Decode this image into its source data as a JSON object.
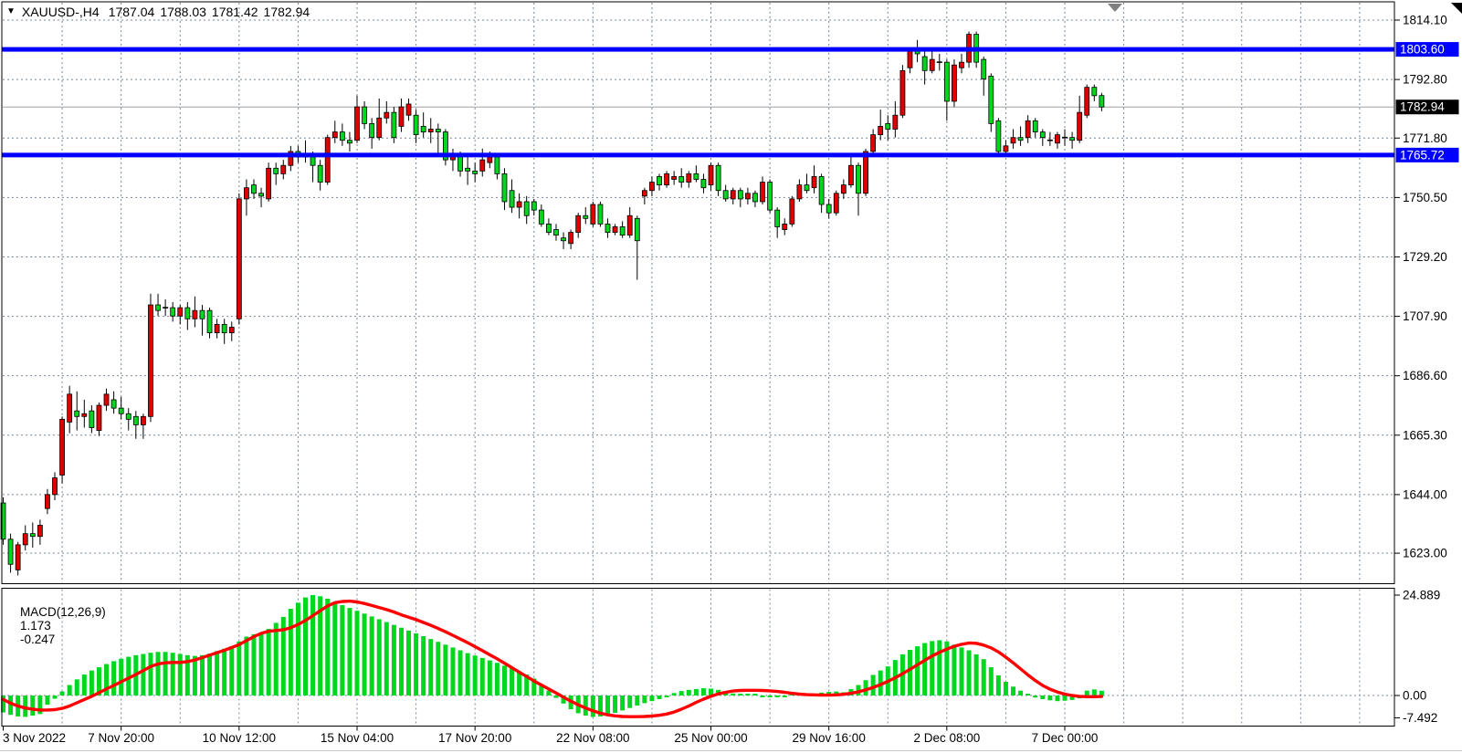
{
  "title": {
    "dropdown_icon": "▼",
    "symbol_timeframe": "XAUUSD-,H4",
    "open": "1787.04",
    "high": "1788.03",
    "low": "1781.42",
    "close": "1782.94"
  },
  "macd_panel": {
    "label": "MACD(12,26,9)",
    "main_value": "1.173",
    "signal_value": "-0.247"
  },
  "price_axis": {
    "labels": [
      {
        "text": "1814.10",
        "price": 1814.1,
        "style": "plain"
      },
      {
        "text": "1803.60",
        "price": 1803.6,
        "style": "blue-badge"
      },
      {
        "text": "1792.80",
        "price": 1792.8,
        "style": "plain"
      },
      {
        "text": "1782.94",
        "price": 1782.94,
        "style": "black-badge"
      },
      {
        "text": "1771.80",
        "price": 1771.8,
        "style": "plain"
      },
      {
        "text": "1765.72",
        "price": 1765.72,
        "style": "blue-badge"
      },
      {
        "text": "1750.50",
        "price": 1750.5,
        "style": "plain"
      },
      {
        "text": "1729.20",
        "price": 1729.2,
        "style": "plain"
      },
      {
        "text": "1707.90",
        "price": 1707.9,
        "style": "plain"
      },
      {
        "text": "1686.60",
        "price": 1686.6,
        "style": "plain"
      },
      {
        "text": "1665.30",
        "price": 1665.3,
        "style": "plain"
      },
      {
        "text": "1644.00",
        "price": 1644.0,
        "style": "plain"
      },
      {
        "text": "1623.00",
        "price": 1623.0,
        "style": "plain"
      }
    ]
  },
  "time_axis": {
    "labels": [
      {
        "text": "3 Nov 2022",
        "grid": 0,
        "align": "left"
      },
      {
        "text": "7 Nov 20:00",
        "grid": 2
      },
      {
        "text": "10 Nov 12:00",
        "grid": 4
      },
      {
        "text": "15 Nov 04:00",
        "grid": 6
      },
      {
        "text": "17 Nov 20:00",
        "grid": 8
      },
      {
        "text": "22 Nov 08:00",
        "grid": 10
      },
      {
        "text": "25 Nov 00:00",
        "grid": 12
      },
      {
        "text": "29 Nov 16:00",
        "grid": 14
      },
      {
        "text": "2 Dec 08:00",
        "grid": 16
      },
      {
        "text": "7 Dec 00:00",
        "grid": 18
      }
    ]
  },
  "macd_axis": {
    "labels": [
      {
        "text": "24.889",
        "value": 24.889
      },
      {
        "text": "0.00",
        "value": 0.0
      },
      {
        "text": "-7.492",
        "value": -7.492
      }
    ]
  },
  "colors": {
    "bull_candle": "#e00000",
    "bear_candle": "#00d71e",
    "wick": "#000000",
    "grid": "#778899",
    "hline": "#0000ff",
    "current_price_line": "#a0a0a0",
    "macd_histogram": "#00d71e",
    "macd_signal": "#ff0000",
    "badge_blue": "#0000ff",
    "badge_black": "#000000",
    "text": "#000000",
    "background": "#ffffff",
    "shift_marker": "#808080"
  },
  "chart_data": {
    "type": "candlestick",
    "symbol": "XAUUSD-",
    "timeframe": "H4",
    "current_ohlc": {
      "open": 1787.04,
      "high": 1788.03,
      "low": 1781.42,
      "close": 1782.94
    },
    "current_price": 1782.94,
    "horizontal_lines": [
      1803.6,
      1765.72
    ],
    "price_gridlines": [
      1814.1,
      1792.8,
      1771.8,
      1750.5,
      1729.2,
      1707.9,
      1686.6,
      1665.3,
      1644.0,
      1623.0
    ],
    "ylim": [
      1611,
      1821
    ],
    "candles_ohlc": [
      [
        1641,
        1643,
        1626,
        1628
      ],
      [
        1628,
        1630,
        1616,
        1619
      ],
      [
        1617,
        1627,
        1615,
        1626
      ],
      [
        1626,
        1633,
        1624,
        1630
      ],
      [
        1630,
        1634,
        1625,
        1629
      ],
      [
        1629,
        1635,
        1626,
        1633
      ],
      [
        1639,
        1646,
        1637,
        1644
      ],
      [
        1644,
        1652,
        1642,
        1650
      ],
      [
        1651,
        1672,
        1648,
        1671
      ],
      [
        1670,
        1683,
        1666,
        1680
      ],
      [
        1674,
        1681,
        1667,
        1672
      ],
      [
        1672,
        1678,
        1668,
        1673
      ],
      [
        1674,
        1676,
        1666,
        1668
      ],
      [
        1667,
        1677,
        1665,
        1676
      ],
      [
        1676,
        1682,
        1674,
        1680
      ],
      [
        1678,
        1681,
        1673,
        1675
      ],
      [
        1675,
        1679,
        1671,
        1673
      ],
      [
        1673,
        1675,
        1667,
        1671
      ],
      [
        1672,
        1674,
        1664,
        1669
      ],
      [
        1669,
        1673,
        1664,
        1672
      ],
      [
        1672,
        1716,
        1670,
        1712
      ],
      [
        1712,
        1716,
        1708,
        1710
      ],
      [
        1711,
        1714,
        1708,
        1711
      ],
      [
        1711,
        1713,
        1706,
        1708
      ],
      [
        1708,
        1712,
        1705,
        1711
      ],
      [
        1711,
        1713,
        1703,
        1707
      ],
      [
        1707,
        1715,
        1704,
        1710
      ],
      [
        1710,
        1712,
        1701,
        1707
      ],
      [
        1710,
        1711,
        1700,
        1702
      ],
      [
        1702,
        1707,
        1700,
        1705
      ],
      [
        1705,
        1707,
        1698,
        1702
      ],
      [
        1702,
        1706,
        1699,
        1704
      ],
      [
        1707,
        1752,
        1705,
        1750
      ],
      [
        1750,
        1757,
        1744,
        1754
      ],
      [
        1755,
        1757,
        1750,
        1752
      ],
      [
        1752,
        1754,
        1747,
        1751
      ],
      [
        1750,
        1763,
        1749,
        1761
      ],
      [
        1761,
        1763,
        1755,
        1759
      ],
      [
        1759,
        1764,
        1757,
        1762
      ],
      [
        1762,
        1769,
        1760,
        1767
      ],
      [
        1767,
        1769,
        1763,
        1765
      ],
      [
        1766,
        1771,
        1763,
        1765
      ],
      [
        1765,
        1767,
        1756,
        1762
      ],
      [
        1762,
        1764,
        1753,
        1756
      ],
      [
        1756,
        1773,
        1755,
        1772
      ],
      [
        1772,
        1778,
        1770,
        1774
      ],
      [
        1774,
        1777,
        1769,
        1771
      ],
      [
        1771,
        1774,
        1767,
        1770
      ],
      [
        1771,
        1787,
        1770,
        1783
      ],
      [
        1783,
        1785,
        1775,
        1777
      ],
      [
        1777,
        1779,
        1768,
        1772
      ],
      [
        1772,
        1786,
        1771,
        1779
      ],
      [
        1779,
        1785,
        1777,
        1781
      ],
      [
        1781,
        1783,
        1770,
        1772
      ],
      [
        1776,
        1786,
        1774,
        1783
      ],
      [
        1780,
        1786,
        1778,
        1784
      ],
      [
        1780,
        1782,
        1770,
        1773
      ],
      [
        1776,
        1781,
        1772,
        1774
      ],
      [
        1774,
        1779,
        1770,
        1775
      ],
      [
        1775,
        1777,
        1766,
        1774
      ],
      [
        1774,
        1775,
        1762,
        1764
      ],
      [
        1764,
        1768,
        1760,
        1766
      ],
      [
        1766,
        1767,
        1758,
        1760
      ],
      [
        1761,
        1766,
        1755,
        1760
      ],
      [
        1760,
        1763,
        1756,
        1759
      ],
      [
        1760,
        1768,
        1758,
        1764
      ],
      [
        1763,
        1767,
        1761,
        1765
      ],
      [
        1765,
        1766,
        1757,
        1759
      ],
      [
        1759,
        1761,
        1746,
        1749
      ],
      [
        1753,
        1757,
        1745,
        1747
      ],
      [
        1747,
        1752,
        1743,
        1749
      ],
      [
        1749,
        1751,
        1741,
        1744
      ],
      [
        1749,
        1750,
        1744,
        1746
      ],
      [
        1746,
        1748,
        1740,
        1741
      ],
      [
        1741,
        1743,
        1737,
        1738
      ],
      [
        1739,
        1741,
        1735,
        1737
      ],
      [
        1736,
        1738,
        1732,
        1735
      ],
      [
        1734,
        1739,
        1732,
        1738
      ],
      [
        1738,
        1745,
        1736,
        1744
      ],
      [
        1744,
        1747,
        1741,
        1743
      ],
      [
        1741,
        1749,
        1740,
        1748
      ],
      [
        1748,
        1749,
        1740,
        1741
      ],
      [
        1741,
        1743,
        1736,
        1738
      ],
      [
        1738,
        1741,
        1737,
        1740
      ],
      [
        1740,
        1742,
        1736,
        1737
      ],
      [
        1737,
        1747,
        1736,
        1744
      ],
      [
        1743,
        1744,
        1721,
        1735
      ],
      [
        1751,
        1754,
        1748,
        1753
      ],
      [
        1753,
        1758,
        1751,
        1756
      ],
      [
        1758,
        1759,
        1753,
        1755
      ],
      [
        1755,
        1760,
        1754,
        1759
      ],
      [
        1757,
        1760,
        1755,
        1758
      ],
      [
        1758,
        1761,
        1754,
        1756
      ],
      [
        1756,
        1760,
        1754,
        1759
      ],
      [
        1759,
        1762,
        1756,
        1757
      ],
      [
        1757,
        1759,
        1752,
        1754
      ],
      [
        1755,
        1763,
        1753,
        1762
      ],
      [
        1762,
        1763,
        1751,
        1753
      ],
      [
        1753,
        1755,
        1749,
        1750
      ],
      [
        1750,
        1754,
        1748,
        1753
      ],
      [
        1753,
        1754,
        1747,
        1750
      ],
      [
        1750,
        1754,
        1748,
        1752
      ],
      [
        1752,
        1753,
        1747,
        1749
      ],
      [
        1749,
        1758,
        1748,
        1756
      ],
      [
        1756,
        1757,
        1745,
        1746
      ],
      [
        1746,
        1747,
        1736,
        1740
      ],
      [
        1739,
        1743,
        1737,
        1741
      ],
      [
        1741,
        1751,
        1740,
        1750
      ],
      [
        1750,
        1757,
        1749,
        1755
      ],
      [
        1755,
        1759,
        1752,
        1753
      ],
      [
        1754,
        1762,
        1752,
        1758
      ],
      [
        1758,
        1759,
        1745,
        1748
      ],
      [
        1748,
        1750,
        1743,
        1745
      ],
      [
        1745,
        1753,
        1744,
        1752
      ],
      [
        1752,
        1757,
        1750,
        1755
      ],
      [
        1755,
        1766,
        1754,
        1762
      ],
      [
        1762,
        1763,
        1744,
        1752
      ],
      [
        1752,
        1768,
        1751,
        1767
      ],
      [
        1767,
        1775,
        1765,
        1773
      ],
      [
        1773,
        1782,
        1771,
        1776
      ],
      [
        1777,
        1780,
        1771,
        1775
      ],
      [
        1775,
        1785,
        1772,
        1780
      ],
      [
        1780,
        1798,
        1779,
        1796
      ],
      [
        1797,
        1804,
        1795,
        1803
      ],
      [
        1803,
        1807,
        1799,
        1802
      ],
      [
        1801,
        1803,
        1791,
        1796
      ],
      [
        1796,
        1803,
        1795,
        1800
      ],
      [
        1799,
        1802,
        1796,
        1799
      ],
      [
        1799,
        1800,
        1778,
        1785
      ],
      [
        1785,
        1800,
        1783,
        1798
      ],
      [
        1797,
        1802,
        1795,
        1799
      ],
      [
        1799,
        1810,
        1797,
        1809
      ],
      [
        1809,
        1810,
        1797,
        1799
      ],
      [
        1800,
        1801,
        1787,
        1793
      ],
      [
        1794,
        1795,
        1774,
        1777
      ],
      [
        1778,
        1779,
        1765,
        1767
      ],
      [
        1767,
        1771,
        1765,
        1769
      ],
      [
        1770,
        1775,
        1768,
        1772
      ],
      [
        1772,
        1776,
        1769,
        1771
      ],
      [
        1772,
        1780,
        1770,
        1778
      ],
      [
        1778,
        1779,
        1772,
        1774
      ],
      [
        1774,
        1775,
        1769,
        1772
      ],
      [
        1771,
        1774,
        1769,
        1771
      ],
      [
        1770,
        1774,
        1768,
        1773
      ],
      [
        1772,
        1775,
        1769,
        1772
      ],
      [
        1772,
        1774,
        1768,
        1771
      ],
      [
        1771,
        1787,
        1770,
        1781
      ],
      [
        1780,
        1791,
        1779,
        1790
      ],
      [
        1790,
        1791,
        1785,
        1787
      ],
      [
        1787.04,
        1788.03,
        1781.42,
        1782.94
      ]
    ],
    "macd": {
      "parameters": "12,26,9",
      "main_last": 1.173,
      "signal_last": -0.247,
      "axis_max": 24.889,
      "axis_min": -7.492,
      "histogram": [
        -4.2,
        -4.8,
        -5.2,
        -5.3,
        -5.0,
        -4.6,
        -2.3,
        -0.8,
        1.0,
        2.6,
        4.0,
        5.2,
        6.2,
        7.0,
        7.8,
        8.5,
        9.1,
        9.6,
        10.0,
        10.3,
        10.6,
        10.8,
        10.8,
        10.6,
        10.3,
        10.0,
        9.8,
        10.0,
        10.4,
        11.0,
        11.6,
        12.2,
        13.4,
        14.6,
        15.2,
        15.6,
        16.5,
        18.0,
        19.5,
        21.5,
        23.0,
        24.3,
        24.889,
        24.6,
        24.0,
        23.2,
        22.4,
        21.7,
        21.0,
        20.3,
        19.6,
        18.9,
        18.2,
        17.5,
        16.8,
        16.1,
        15.4,
        14.7,
        14.0,
        13.3,
        12.6,
        11.9,
        11.2,
        10.5,
        9.9,
        9.3,
        8.7,
        8.1,
        7.4,
        6.7,
        6.0,
        5.2,
        4.2,
        2.8,
        1.2,
        -0.6,
        -2.0,
        -3.4,
        -4.4,
        -5.0,
        -5.3,
        -5.2,
        -4.8,
        -4.3,
        -3.7,
        -3.1,
        -2.5,
        -1.9,
        -1.4,
        -0.9,
        -0.4,
        0.6,
        1.1,
        1.4,
        1.6,
        1.8,
        1.7,
        1.4,
        0.8,
        0.5,
        0.3,
        0.3,
        0.4,
        -0.3,
        -0.4,
        -0.4,
        -0.3,
        0.3,
        0.3,
        0.4,
        0.5,
        0.7,
        0.9,
        1.0,
        0.8,
        1.6,
        2.6,
        3.8,
        5.1,
        6.2,
        7.2,
        8.8,
        10.2,
        11.3,
        12.2,
        13.0,
        13.5,
        13.7,
        13.4,
        12.6,
        11.9,
        11.2,
        10.2,
        9.0,
        7.0,
        5.0,
        3.4,
        2.2,
        1.2,
        0.4,
        -0.5,
        -0.9,
        -1.2,
        -1.4,
        -1.3,
        -1.1,
        -0.7,
        1.2,
        1.5,
        1.173
      ],
      "signal": [
        -1.0,
        -1.9,
        -2.6,
        -3.1,
        -3.4,
        -3.6,
        -3.6,
        -3.5,
        -3.2,
        -2.6,
        -1.8,
        -1.0,
        -0.2,
        0.7,
        1.6,
        2.5,
        3.4,
        4.3,
        5.2,
        6.2,
        7.2,
        7.8,
        8.1,
        8.2,
        8.2,
        8.4,
        8.8,
        9.4,
        10.0,
        10.6,
        11.2,
        11.9,
        12.6,
        13.6,
        14.6,
        15.4,
        15.9,
        16.1,
        16.3,
        16.8,
        17.6,
        18.6,
        19.8,
        21.0,
        22.2,
        23.0,
        23.3,
        23.4,
        23.2,
        22.8,
        22.3,
        21.8,
        21.3,
        20.7,
        20.0,
        19.4,
        18.8,
        18.1,
        17.4,
        16.6,
        15.8,
        14.9,
        14.0,
        13.1,
        12.1,
        11.1,
        10.1,
        9.1,
        8.0,
        6.9,
        5.8,
        4.7,
        3.6,
        2.6,
        1.6,
        0.6,
        -0.4,
        -1.4,
        -2.3,
        -3.1,
        -3.8,
        -4.4,
        -4.8,
        -5.05,
        -5.2,
        -5.25,
        -5.25,
        -5.2,
        -5.1,
        -4.9,
        -4.6,
        -4.1,
        -3.4,
        -2.6,
        -1.7,
        -0.9,
        -0.2,
        0.4,
        0.8,
        1.1,
        1.25,
        1.3,
        1.3,
        1.25,
        1.15,
        1.0,
        0.8,
        0.55,
        0.35,
        0.2,
        0.15,
        0.1,
        0.1,
        0.15,
        0.3,
        0.55,
        0.9,
        1.4,
        2.0,
        2.7,
        3.5,
        4.4,
        5.4,
        6.5,
        7.6,
        8.7,
        9.8,
        10.7,
        11.5,
        12.2,
        12.7,
        13.0,
        12.95,
        12.5,
        11.8,
        10.8,
        9.5,
        8.1,
        6.6,
        5.1,
        3.7,
        2.5,
        1.55,
        0.85,
        0.35,
        0.0,
        -0.2,
        -0.3,
        -0.3,
        -0.247
      ]
    }
  }
}
